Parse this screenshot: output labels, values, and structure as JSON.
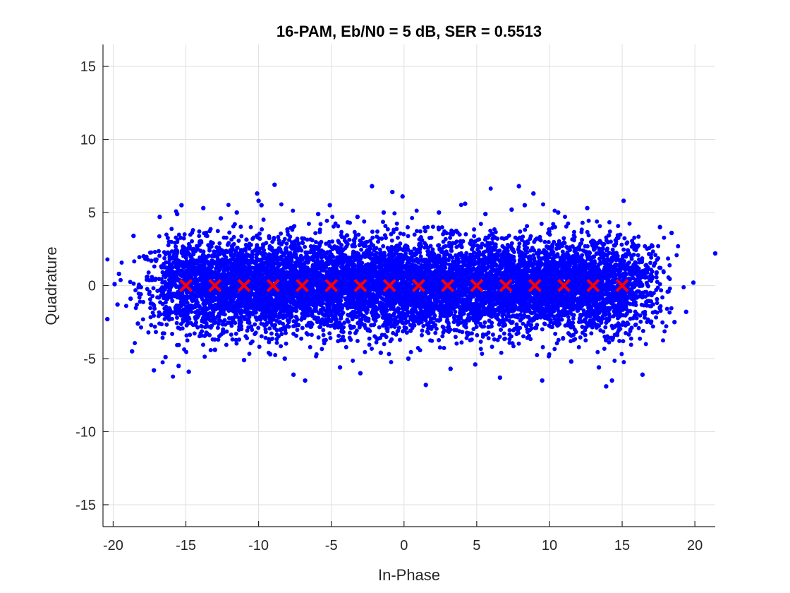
{
  "chart_data": {
    "type": "scatter",
    "title": "16-PAM, Eb/N0 = 5 dB, SER = 0.5513",
    "xlabel": "In-Phase",
    "ylabel": "Quadrature",
    "xlim": [
      -20.7,
      21.4
    ],
    "ylim": [
      -16.5,
      16.5
    ],
    "xticks": [
      -20,
      -15,
      -10,
      -5,
      0,
      5,
      10,
      15,
      20
    ],
    "yticks": [
      -15,
      -10,
      -5,
      0,
      5,
      10,
      15
    ],
    "xtick_labels": [
      "-20",
      "-15",
      "-10",
      "-5",
      "0",
      "5",
      "10",
      "15",
      "20"
    ],
    "ytick_labels": [
      "-15",
      "-10",
      "-5",
      "0",
      "5",
      "10",
      "15"
    ],
    "grid": true,
    "series": [
      {
        "role": "received-samples",
        "marker": "filled-dot",
        "color": "#0000ff",
        "cloud_sigma": 1.55,
        "values": [
          [
            -20.4,
            -2.3
          ],
          [
            -19.9,
            0.1
          ],
          [
            -19.7,
            -1.3
          ],
          [
            -19.6,
            0.8
          ],
          [
            -18.8,
            -0.9
          ],
          [
            -18.7,
            -4.5
          ],
          [
            -18.6,
            3.4
          ],
          [
            -18.3,
            -2.6
          ],
          [
            -17.9,
            2.0
          ],
          [
            -17.2,
            -5.8
          ],
          [
            -16.8,
            4.7
          ],
          [
            -16.4,
            -4.9
          ],
          [
            -16.2,
            0.7
          ],
          [
            -15.6,
            4.9
          ],
          [
            -15.3,
            5.5
          ],
          [
            -15.5,
            -5.5
          ],
          [
            -14.8,
            -5.9
          ],
          [
            -13.8,
            5.3
          ],
          [
            -13.0,
            -4.4
          ],
          [
            -12.6,
            4.6
          ],
          [
            -11.5,
            5.0
          ],
          [
            -11.0,
            -5.1
          ],
          [
            -10.1,
            6.3
          ],
          [
            -10.0,
            5.8
          ],
          [
            -9.8,
            5.5
          ],
          [
            -9.2,
            -4.7
          ],
          [
            -8.9,
            6.9
          ],
          [
            -8.2,
            -5.0
          ],
          [
            -7.6,
            -6.1
          ],
          [
            -6.8,
            -6.5
          ],
          [
            -5.9,
            4.9
          ],
          [
            -5.1,
            5.5
          ],
          [
            -4.4,
            -5.6
          ],
          [
            -3.2,
            4.7
          ],
          [
            -3.0,
            -6.0
          ],
          [
            -2.2,
            6.8
          ],
          [
            -1.6,
            -4.6
          ],
          [
            -1.4,
            5.0
          ],
          [
            -0.8,
            6.4
          ],
          [
            -0.1,
            6.1
          ],
          [
            0.3,
            -5.0
          ],
          [
            1.5,
            -6.8
          ],
          [
            2.4,
            5.0
          ],
          [
            3.2,
            -5.7
          ],
          [
            4.2,
            5.6
          ],
          [
            4.9,
            -5.4
          ],
          [
            5.6,
            4.9
          ],
          [
            6.6,
            -6.3
          ],
          [
            7.4,
            5.2
          ],
          [
            7.9,
            6.8
          ],
          [
            8.3,
            5.5
          ],
          [
            8.9,
            6.3
          ],
          [
            9.5,
            -6.5
          ],
          [
            10.6,
            5.0
          ],
          [
            11.5,
            -5.2
          ],
          [
            12.6,
            5.3
          ],
          [
            13.4,
            -5.6
          ],
          [
            13.9,
            -6.9
          ],
          [
            14.3,
            -6.5
          ],
          [
            15.1,
            5.8
          ],
          [
            16.4,
            -6.1
          ],
          [
            17.6,
            4.0
          ],
          [
            18.4,
            3.6
          ],
          [
            18.6,
            -2.5
          ],
          [
            19.4,
            -1.8
          ],
          [
            19.9,
            0.2
          ],
          [
            21.4,
            2.2
          ]
        ]
      },
      {
        "role": "ideal-constellation",
        "marker": "x",
        "color": "#ff0000",
        "values": [
          [
            -15,
            0
          ],
          [
            -13,
            0
          ],
          [
            -11,
            0
          ],
          [
            -9,
            0
          ],
          [
            -7,
            0
          ],
          [
            -5,
            0
          ],
          [
            -3,
            0
          ],
          [
            -1,
            0
          ],
          [
            1,
            0
          ],
          [
            3,
            0
          ],
          [
            5,
            0
          ],
          [
            7,
            0
          ],
          [
            9,
            0
          ],
          [
            11,
            0
          ],
          [
            13,
            0
          ],
          [
            15,
            0
          ]
        ]
      }
    ]
  }
}
